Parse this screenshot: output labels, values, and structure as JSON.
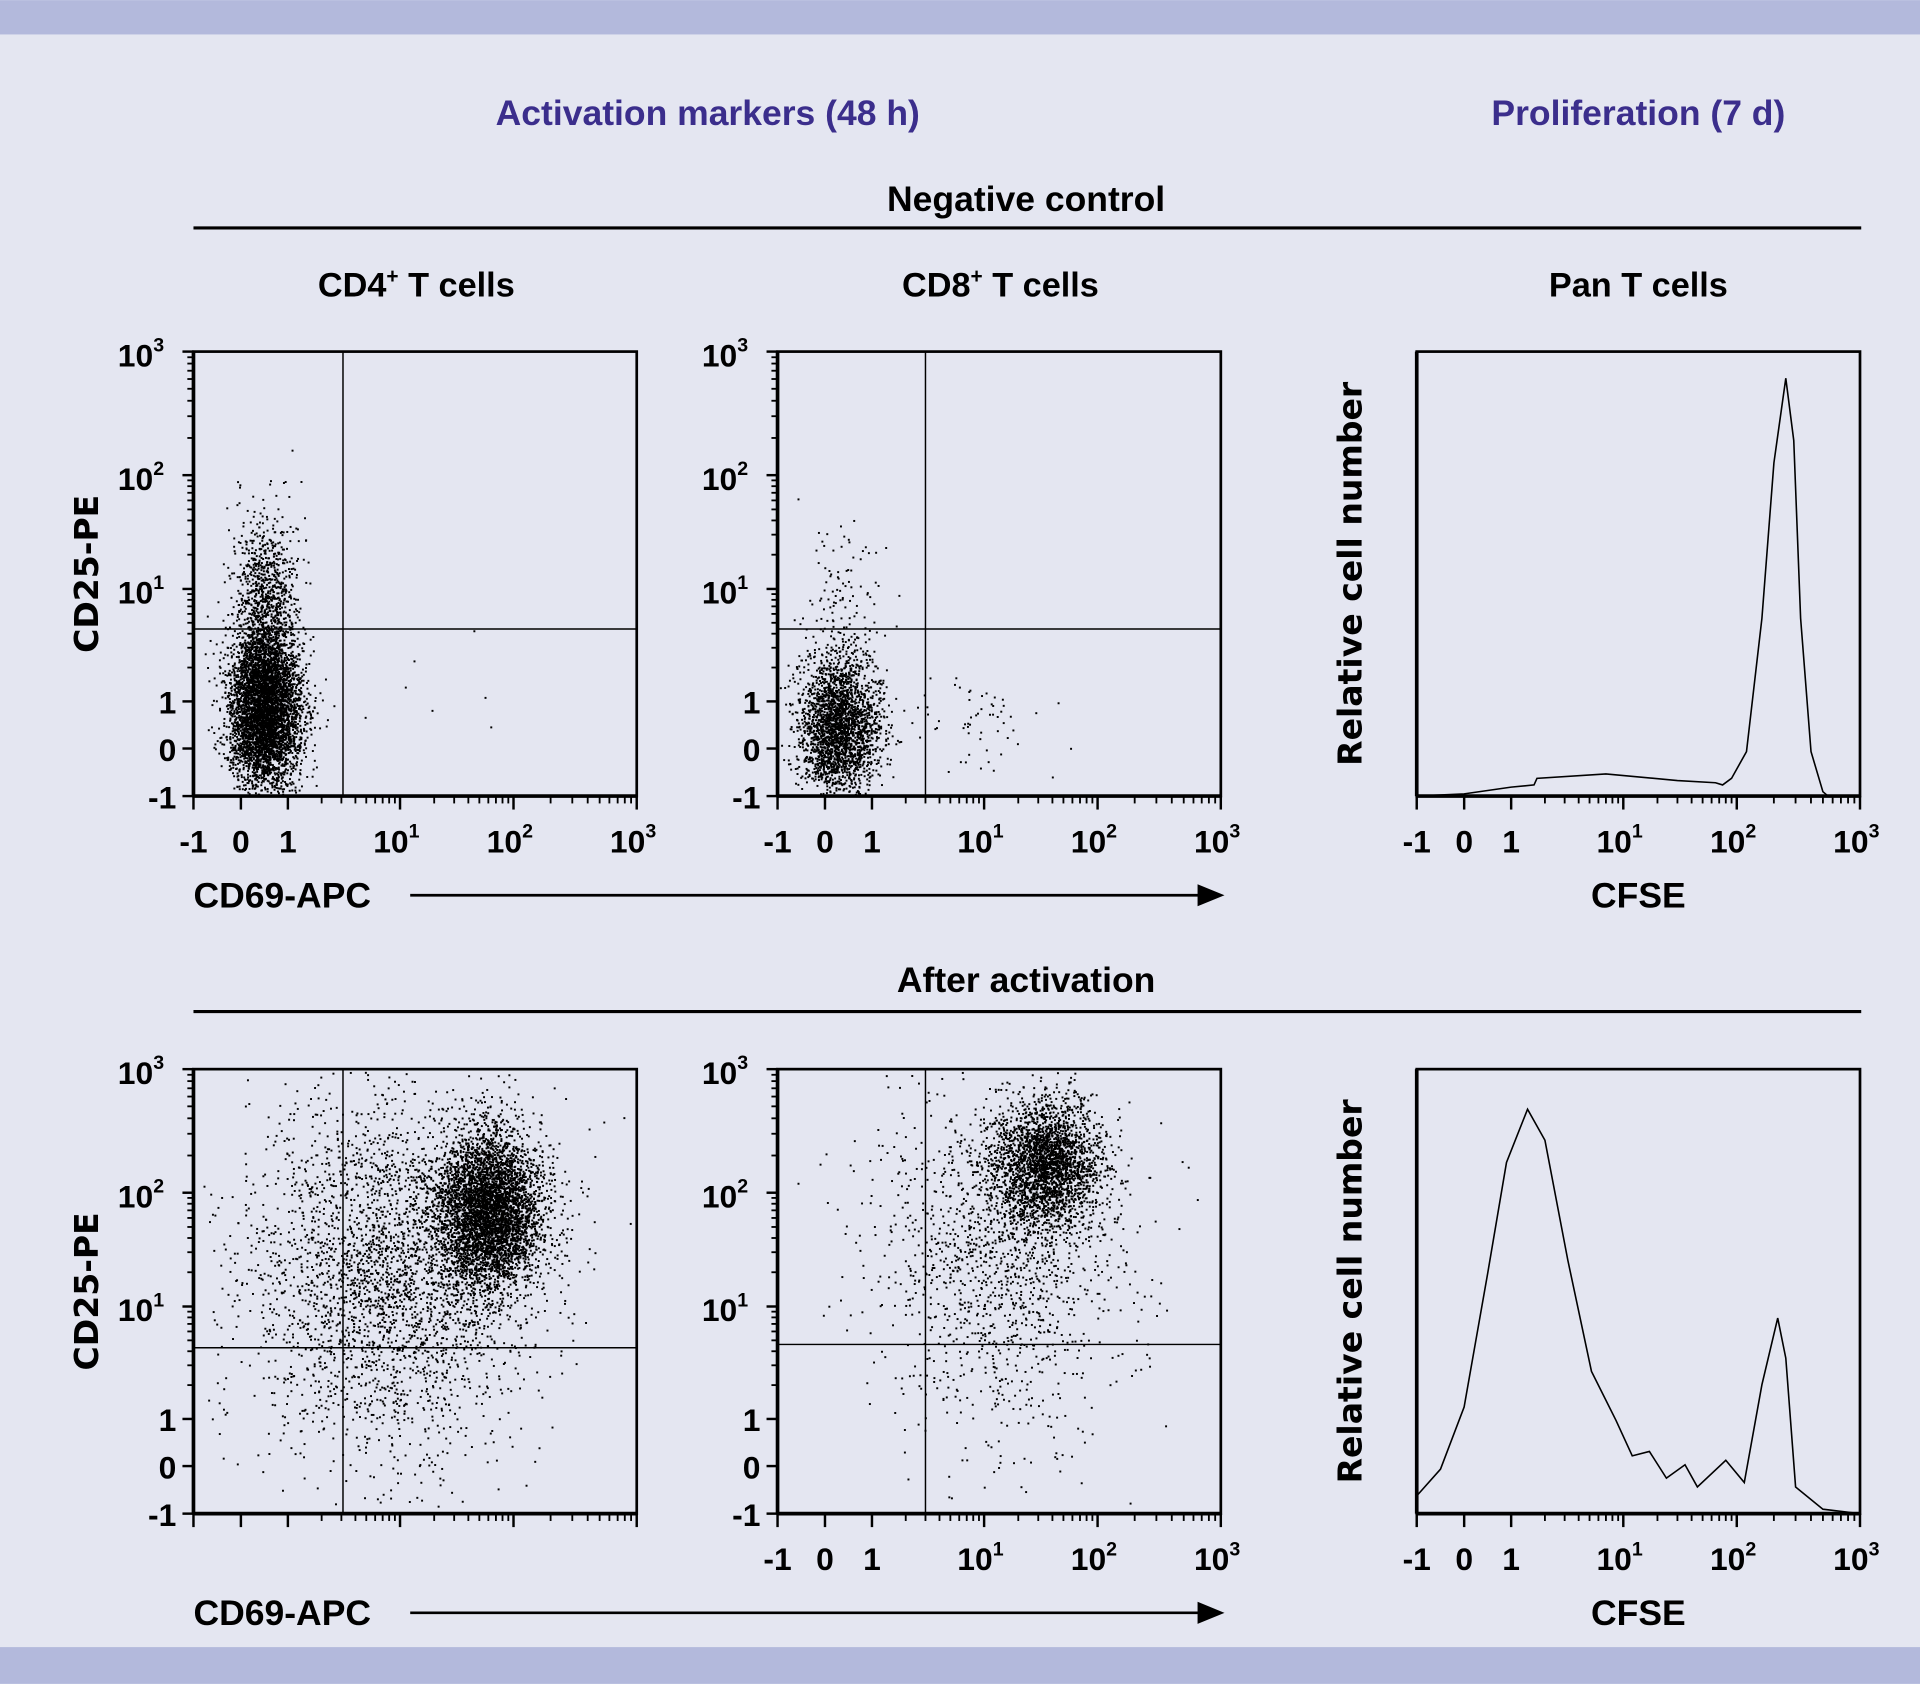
{
  "colors": {
    "background": "#e4e6f1",
    "band": "#b3b9dc",
    "title": "#3b2e8c",
    "ink": "#000000"
  },
  "header": {
    "left_title": "Activation markers (48 h)",
    "right_title": "Proliferation (7 d)"
  },
  "sections": [
    {
      "label": "Negative control"
    },
    {
      "label": "After activation"
    }
  ],
  "column_titles": [
    {
      "main": "CD4",
      "sup": "+",
      "rest": " T cells"
    },
    {
      "main": "CD8",
      "sup": "+",
      "rest": " T cells"
    },
    {
      "main": "Pan T cells",
      "sup": "",
      "rest": ""
    }
  ],
  "axis_labels": {
    "scatter_y": "CD25-PE",
    "scatter_x": "CD69-APC",
    "hist_y": "Relative cell number",
    "hist_x": "CFSE"
  },
  "ticks": [
    {
      "value": -1,
      "label": "-1",
      "sup": ""
    },
    {
      "value": 0,
      "label": "0",
      "sup": ""
    },
    {
      "value": 1,
      "label": "1",
      "sup": ""
    },
    {
      "value": 10,
      "label": "10",
      "sup": "1"
    },
    {
      "value": 100,
      "label": "100",
      "sup": "2"
    },
    {
      "value": 1000,
      "label": "10",
      "sup": "3"
    }
  ],
  "chart_data": [
    {
      "type": "scatter",
      "row": "Negative control",
      "population": "CD4+ T cells",
      "xlabel": "CD69-APC",
      "ylabel": "CD25-PE",
      "xlim": [
        -1,
        1000
      ],
      "ylim": [
        -1,
        1000
      ],
      "scale": "biexponential",
      "x_tick_labels_shown": true,
      "gate": {
        "x": 3.1,
        "y": 4.4
      },
      "populations": [
        {
          "x": 0.5,
          "y": 0.85,
          "count": 5000
        },
        {
          "x": 0.5,
          "y": 8,
          "count": 900
        },
        {
          "x": 10,
          "y": 1,
          "count": 8
        }
      ]
    },
    {
      "type": "scatter",
      "row": "Negative control",
      "population": "CD8+ T cells",
      "xlabel": "CD69-APC",
      "ylabel": "CD25-PE",
      "xlim": [
        -1,
        1000
      ],
      "ylim": [
        -1,
        1000
      ],
      "scale": "biexponential",
      "x_tick_labels_shown": true,
      "gate": {
        "x": 3.0,
        "y": 4.4
      },
      "populations": [
        {
          "x": 0.3,
          "y": 0.5,
          "count": 2500
        },
        {
          "x": 0.3,
          "y": 5,
          "count": 150
        },
        {
          "x": 8,
          "y": 0.5,
          "count": 60
        }
      ]
    },
    {
      "type": "line",
      "row": "Negative control",
      "population": "Pan T cells",
      "xlabel": "CFSE",
      "ylabel": "Relative cell number",
      "xlim": [
        -1,
        1000
      ],
      "ylim": [
        0,
        1
      ],
      "scale": "biexponential",
      "x_tick_labels_shown": true,
      "x": [
        -1,
        0,
        1,
        1.6,
        1.7,
        7,
        30,
        65,
        75,
        90,
        120,
        160,
        200,
        250,
        290,
        330,
        400,
        500,
        550
      ],
      "y": [
        0,
        0.005,
        0.02,
        0.025,
        0.04,
        0.05,
        0.035,
        0.03,
        0.025,
        0.04,
        0.1,
        0.4,
        0.75,
        0.94,
        0.8,
        0.4,
        0.1,
        0.01,
        0
      ]
    },
    {
      "type": "scatter",
      "row": "After activation",
      "population": "CD4+ T cells",
      "xlabel": "CD69-APC",
      "ylabel": "CD25-PE",
      "xlim": [
        -1,
        1000
      ],
      "ylim": [
        -1,
        1000
      ],
      "scale": "biexponential",
      "x_tick_labels_shown": false,
      "gate": {
        "x": 3.1,
        "y": 4.3
      },
      "populations": [
        {
          "x": 60,
          "y": 70,
          "count": 4500
        },
        {
          "x": 8,
          "y": 20,
          "count": 3000
        }
      ]
    },
    {
      "type": "scatter",
      "row": "After activation",
      "population": "CD8+ T cells",
      "xlabel": "CD69-APC",
      "ylabel": "CD25-PE",
      "xlim": [
        -1,
        1000
      ],
      "ylim": [
        -1,
        1000
      ],
      "scale": "biexponential",
      "x_tick_labels_shown": true,
      "gate": {
        "x": 3.0,
        "y": 4.6
      },
      "populations": [
        {
          "x": 35,
          "y": 170,
          "count": 2500
        },
        {
          "x": 15,
          "y": 30,
          "count": 1500
        }
      ]
    },
    {
      "type": "line",
      "row": "After activation",
      "population": "Pan T cells",
      "xlabel": "CFSE",
      "ylabel": "Relative cell number",
      "xlim": [
        -1,
        1000
      ],
      "ylim": [
        0,
        1
      ],
      "scale": "biexponential",
      "x_tick_labels_shown": true,
      "x": [
        -1,
        -0.5,
        0,
        0.5,
        0.9,
        1.4,
        2,
        3.2,
        5.2,
        8.6,
        12,
        17,
        24,
        35,
        45,
        80,
        115,
        160,
        215,
        250,
        300,
        500,
        1000
      ],
      "y": [
        0.04,
        0.1,
        0.24,
        0.54,
        0.79,
        0.91,
        0.84,
        0.57,
        0.32,
        0.21,
        0.13,
        0.14,
        0.08,
        0.11,
        0.06,
        0.12,
        0.07,
        0.29,
        0.44,
        0.35,
        0.06,
        0.01,
        0
      ]
    }
  ]
}
